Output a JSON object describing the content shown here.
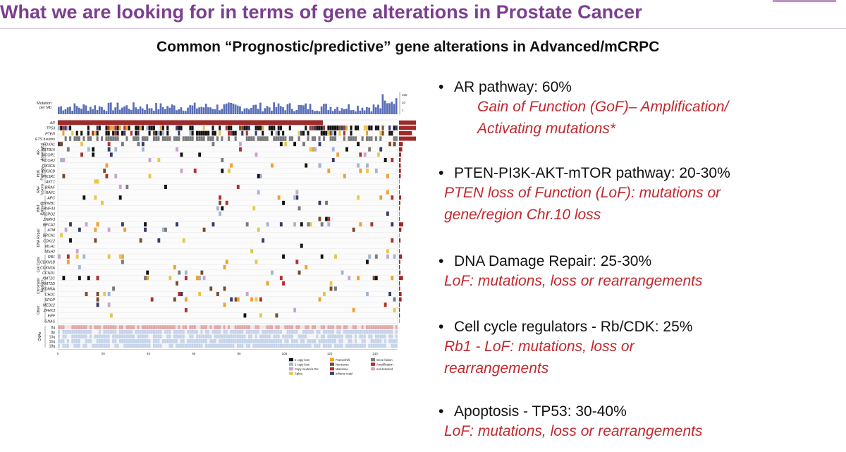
{
  "title": "What we are looking for in terms of gene alterations in Prostate Cancer",
  "subtitle": "Common “Prognostic/predictive” gene alterations in Advanced/mCRPC",
  "colors": {
    "title": "#7b3f8f",
    "accent_red": "#c0282e",
    "bar_blue": "#5a6fb8",
    "summary_red": "#9e2a2a"
  },
  "oncoprint": {
    "mutation_label": "Mutation\nper Mb",
    "mutation_axis_ticks": [
      "100",
      "10",
      "1"
    ],
    "top_genes": [
      {
        "name": "AR",
        "pct": "62.7%"
      },
      {
        "name": "TP53",
        "pct": "53.3%"
      },
      {
        "name": "PTEN",
        "pct": "40.7%"
      },
      {
        "name": "ETS fusions",
        "pct": "58.7%"
      }
    ],
    "groups": [
      {
        "label": "AR-\nAssociated",
        "genes": [
          {
            "name": "FOXA1",
            "pct": "12%"
          },
          {
            "name": "ZBTB16",
            "pct": "10%"
          },
          {
            "name": "NCOR1",
            "pct": "6.7%"
          },
          {
            "name": "NCOR2",
            "pct": "5.3%"
          }
        ]
      },
      {
        "label": "PI3K\nPathway",
        "genes": [
          {
            "name": "PIK3CA",
            "pct": "5.3%"
          },
          {
            "name": "PIK3CB",
            "pct": "6.0%"
          },
          {
            "name": "PIK3R1",
            "pct": "5.3%"
          },
          {
            "name": "AKT1",
            "pct": "1.3%"
          }
        ]
      },
      {
        "label": "RAF\nfusions",
        "genes": [
          {
            "name": "BRAF",
            "pct": "2.7%"
          },
          {
            "name": "RAF1",
            "pct": "2.0%"
          }
        ]
      },
      {
        "label": "WNT\nPathway",
        "genes": [
          {
            "name": "APC",
            "pct": "6.7%"
          },
          {
            "name": "CTNNB1",
            "pct": "4.0%"
          },
          {
            "name": "RNF43",
            "pct": "2.7%"
          },
          {
            "name": "RSPO2",
            "pct": "1.3%"
          },
          {
            "name": "ZNRF3",
            "pct": "2.0%"
          }
        ]
      },
      {
        "label": "DNA Repair",
        "genes": [
          {
            "name": "BRCA2",
            "pct": "13.3%"
          },
          {
            "name": "ATM",
            "pct": "7.3%"
          },
          {
            "name": "BRCA1",
            "pct": "0.7%"
          },
          {
            "name": "CDK12",
            "pct": "4.7%"
          },
          {
            "name": "MLH1",
            "pct": "0.7%"
          },
          {
            "name": "MSH2",
            "pct": "2.0%"
          }
        ]
      },
      {
        "label": "Cell Cycle",
        "genes": [
          {
            "name": "RB1",
            "pct": "9.3%"
          },
          {
            "name": "CDKN1B",
            "pct": "4.0%"
          },
          {
            "name": "CDKN2A",
            "pct": "2.7%"
          },
          {
            "name": "CCND1",
            "pct": "4.7%"
          }
        ]
      },
      {
        "label": "Chromatin\nModifier",
        "genes": [
          {
            "name": "KMT2C",
            "pct": "12.7%"
          },
          {
            "name": "KMT2D",
            "pct": "2.7%"
          },
          {
            "name": "KDM6A",
            "pct": "3.3%"
          },
          {
            "name": "CHD1",
            "pct": "8.0%"
          }
        ]
      },
      {
        "label": "Other",
        "genes": [
          {
            "name": "SPOP",
            "pct": "8.0%"
          },
          {
            "name": "MED12",
            "pct": "2.7%"
          },
          {
            "name": "ZFHX3",
            "pct": "2.7%"
          },
          {
            "name": "ERF",
            "pct": "2.7%"
          },
          {
            "name": "GNAS",
            "pct": "0.0%"
          }
        ]
      }
    ],
    "cnas": {
      "label": "CNAs",
      "rows": [
        "8q",
        "8p",
        "13q",
        "16q",
        "18q"
      ]
    },
    "x_ticks": [
      "0",
      "20",
      "40",
      "60",
      "80",
      "100",
      "120",
      "140"
    ],
    "legend": [
      {
        "label": "2 copy loss",
        "color": "#111111"
      },
      {
        "label": "1 copy loss",
        "color": "#9fb6d8"
      },
      {
        "label": "Copy neutral LOH",
        "color": "#c9a4d0"
      },
      {
        "label": "Splice",
        "color": "#e6c84c"
      },
      {
        "label": "Frameshift",
        "color": "#f0a030"
      },
      {
        "label": "Nonsense",
        "color": "#7a4b2a"
      },
      {
        "label": "Missense",
        "color": "#b03030"
      },
      {
        "label": "Inframe indel",
        "color": "#3a3a6a"
      },
      {
        "label": "Gene fusion",
        "color": "#7a7a7a"
      },
      {
        "label": "Amplification",
        "color": "#b22c2c"
      },
      {
        "label": "not detected",
        "color": "#e0a8a8"
      }
    ]
  },
  "bullets": [
    {
      "head": "AR pathway: 60%",
      "sub": [
        "Gain of Function (GoF)– Amplification/",
        "Activating mutations*"
      ]
    },
    {
      "head": "PTEN-PI3K-AKT-mTOR pathway: 20-30%",
      "sub": [
        "PTEN loss of Function (LoF): mutations or",
        "gene/region Chr.10 loss"
      ]
    },
    {
      "head": "DNA Damage Repair: 25-30%",
      "sub": [
        "LoF: mutations, loss or rearrangements"
      ]
    },
    {
      "head": "Cell cycle regulators - Rb/CDK: 25%",
      "sub": [
        "Rb1 - LoF: mutations, loss or",
        "rearrangements"
      ]
    },
    {
      "head": "Apoptosis - TP53: 30-40%",
      "sub": [
        "LoF: mutations, loss or rearrangements"
      ]
    }
  ]
}
